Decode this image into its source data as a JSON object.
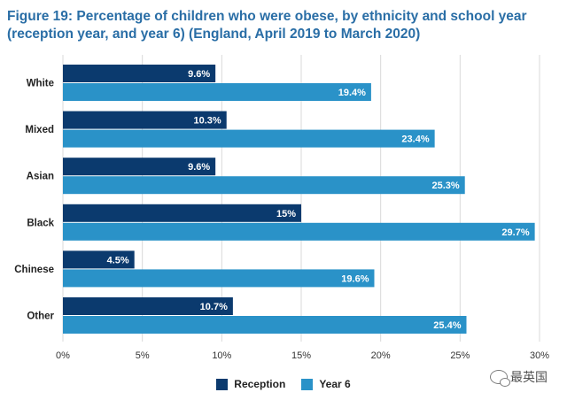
{
  "title_lines": [
    "Figure 19: Percentage of children who were obese, by ethnicity and school year",
    "(reception year, and year 6) (England, April 2019 to March 2020)"
  ],
  "watermark_text": "最英国",
  "colors": {
    "reception": "#0b3a6e",
    "year6": "#2a92c8",
    "grid": "#d9d9d9",
    "title": "#2a6ea6"
  },
  "chart_data": {
    "type": "bar",
    "orientation": "horizontal",
    "title": "Figure 19: Percentage of children who were obese, by ethnicity and school year (reception year, and year 6) (England, April 2019 to March 2020)",
    "categories": [
      "White",
      "Mixed",
      "Asian",
      "Black",
      "Chinese",
      "Other"
    ],
    "series": [
      {
        "name": "Reception",
        "values": [
          9.6,
          10.3,
          9.6,
          15,
          4.5,
          10.7
        ],
        "labels": [
          "9.6%",
          "10.3%",
          "9.6%",
          "15%",
          "4.5%",
          "10.7%"
        ]
      },
      {
        "name": "Year 6",
        "values": [
          19.4,
          23.4,
          25.3,
          29.7,
          19.6,
          25.4
        ],
        "labels": [
          "19.4%",
          "23.4%",
          "25.3%",
          "29.7%",
          "19.6%",
          "25.4%"
        ]
      }
    ],
    "xlim": [
      0,
      30
    ],
    "xticks": [
      0,
      5,
      10,
      15,
      20,
      25,
      30
    ],
    "xtick_labels": [
      "0%",
      "5%",
      "10%",
      "15%",
      "20%",
      "25%",
      "30%"
    ],
    "xlabel": "",
    "ylabel": "",
    "grid": true,
    "legend": {
      "position": "bottom",
      "entries": [
        "Reception",
        "Year 6"
      ]
    }
  }
}
